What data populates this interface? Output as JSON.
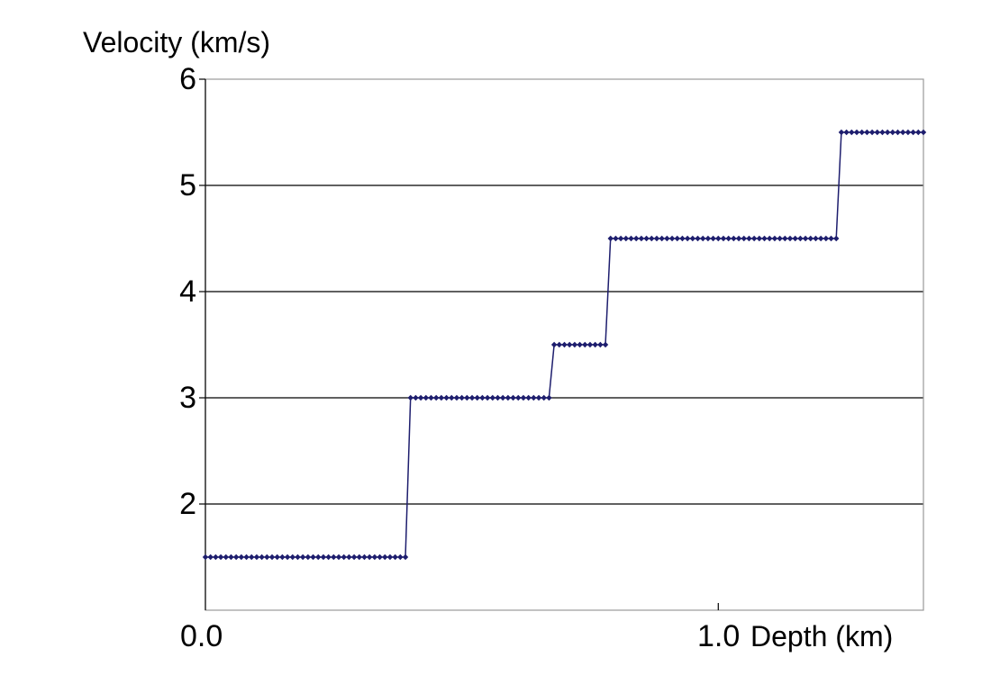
{
  "chart_data": {
    "type": "line",
    "title": "",
    "ylabel": "Velocity (km/s)",
    "xlabel": "Depth (km)",
    "xlim": [
      0.0,
      1.4
    ],
    "ylim": [
      1.0,
      6.0
    ],
    "y_ticks": [
      {
        "value": 2,
        "label": "2"
      },
      {
        "value": 3,
        "label": "3"
      },
      {
        "value": 4,
        "label": "4"
      },
      {
        "value": 5,
        "label": "5"
      },
      {
        "value": 6,
        "label": "6"
      }
    ],
    "x_ticks": [
      {
        "value": 0.0,
        "label": "0.0"
      },
      {
        "value": 1.0,
        "label": "1.0"
      }
    ],
    "gridlines": [
      2,
      3,
      4,
      5
    ],
    "series_color": "#1e1e6e",
    "series": [
      {
        "name": "velocity",
        "step_points": [
          {
            "x": 0.0,
            "y": 1.5
          },
          {
            "x": 0.39,
            "y": 1.5
          },
          {
            "x": 0.4,
            "y": 3.0
          },
          {
            "x": 0.67,
            "y": 3.0
          },
          {
            "x": 0.68,
            "y": 3.5
          },
          {
            "x": 0.78,
            "y": 3.5
          },
          {
            "x": 0.79,
            "y": 4.5
          },
          {
            "x": 1.23,
            "y": 4.5
          },
          {
            "x": 1.24,
            "y": 5.5
          },
          {
            "x": 1.4,
            "y": 5.5
          }
        ],
        "marker_spacing": 0.01
      }
    ]
  }
}
